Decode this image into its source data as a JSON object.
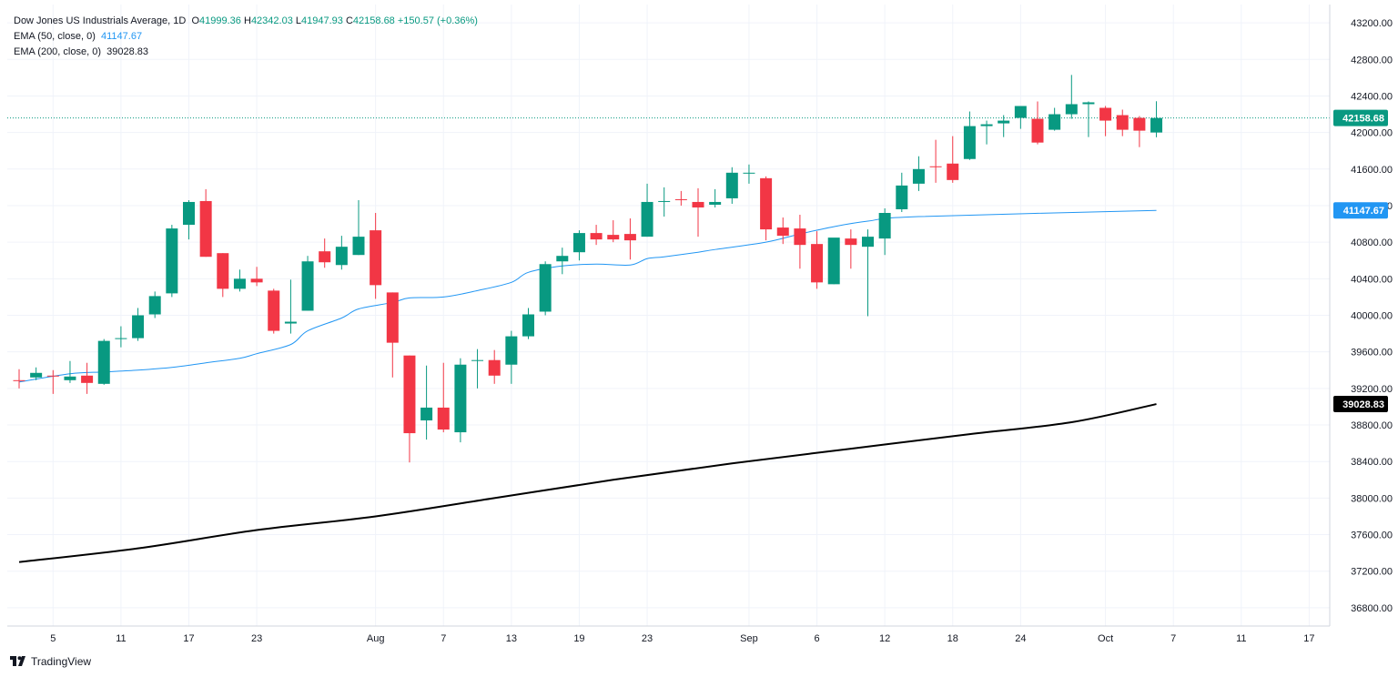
{
  "legend": {
    "symbol": "Dow Jones US Industrials Average, 1D",
    "o_label": "O",
    "o": "41999.36",
    "h_label": "H",
    "h": "42342.03",
    "l_label": "L",
    "l": "41947.93",
    "c_label": "C",
    "c": "42158.68",
    "change": "+150.57 (+0.36%)",
    "ema50_label": "EMA (50, close, 0)",
    "ema50_value": "41147.67",
    "ema200_label": "EMA (200, close, 0)",
    "ema200_value": "39028.83"
  },
  "brand": {
    "name": "TradingView"
  },
  "colors": {
    "up": "#089981",
    "down": "#f23645",
    "ema50": "#2196f3",
    "ema200": "#000000",
    "grid": "#f0f3fa",
    "axis": "#d1d4dc"
  },
  "chart_data": {
    "type": "candlestick",
    "title": "Dow Jones US Industrials Average, 1D",
    "ylim": [
      36600,
      43400
    ],
    "y_ticks": [
      "43200.00",
      "42800.00",
      "42400.00",
      "42000.00",
      "41600.00",
      "41200.00",
      "40800.00",
      "40400.00",
      "40000.00",
      "39600.00",
      "39200.00",
      "38800.00",
      "38400.00",
      "38000.00",
      "37600.00",
      "37200.00",
      "36800.00"
    ],
    "x_ticks": [
      {
        "label": "5",
        "i": 2
      },
      {
        "label": "11",
        "i": 6
      },
      {
        "label": "17",
        "i": 10
      },
      {
        "label": "23",
        "i": 14
      },
      {
        "label": "Aug",
        "i": 21
      },
      {
        "label": "7",
        "i": 25
      },
      {
        "label": "13",
        "i": 29
      },
      {
        "label": "19",
        "i": 33
      },
      {
        "label": "23",
        "i": 37
      },
      {
        "label": "Sep",
        "i": 43
      },
      {
        "label": "6",
        "i": 47
      },
      {
        "label": "12",
        "i": 51
      },
      {
        "label": "18",
        "i": 55
      },
      {
        "label": "24",
        "i": 59
      },
      {
        "label": "Oct",
        "i": 64
      },
      {
        "label": "7",
        "i": 68
      },
      {
        "label": "11",
        "i": 72
      },
      {
        "label": "17",
        "i": 76
      }
    ],
    "candles": [
      [
        39290,
        39410,
        39200,
        39285
      ],
      [
        39320,
        39430,
        39290,
        39370
      ],
      [
        39340,
        39400,
        39140,
        39330
      ],
      [
        39290,
        39500,
        39260,
        39330
      ],
      [
        39340,
        39480,
        39140,
        39260
      ],
      [
        39250,
        39740,
        39240,
        39720
      ],
      [
        39740,
        39880,
        39650,
        39750
      ],
      [
        39750,
        40080,
        39720,
        40000
      ],
      [
        40010,
        40260,
        39970,
        40210
      ],
      [
        40240,
        40990,
        40200,
        40950
      ],
      [
        40990,
        41260,
        40830,
        41240
      ],
      [
        41250,
        41380,
        40640,
        40640
      ],
      [
        40680,
        40680,
        40200,
        40290
      ],
      [
        40290,
        40500,
        40260,
        40400
      ],
      [
        40400,
        40530,
        40320,
        40360
      ],
      [
        40270,
        40290,
        39800,
        39830
      ],
      [
        39910,
        40390,
        39800,
        39930
      ],
      [
        40050,
        40650,
        40050,
        40590
      ],
      [
        40700,
        40840,
        40520,
        40580
      ],
      [
        40550,
        40870,
        40500,
        40750
      ],
      [
        40660,
        41260,
        40660,
        40860
      ],
      [
        40930,
        41120,
        40180,
        40330
      ],
      [
        40250,
        40250,
        39320,
        39700
      ],
      [
        39560,
        39560,
        38390,
        38710
      ],
      [
        38850,
        39450,
        38640,
        38990
      ],
      [
        38990,
        39480,
        38720,
        38750
      ],
      [
        38720,
        39530,
        38610,
        39460
      ],
      [
        39510,
        39630,
        39200,
        39510
      ],
      [
        39510,
        39620,
        39250,
        39340
      ],
      [
        39460,
        39830,
        39250,
        39770
      ],
      [
        39770,
        40080,
        39740,
        40010
      ],
      [
        40040,
        40590,
        40000,
        40560
      ],
      [
        40590,
        40740,
        40450,
        40650
      ],
      [
        40690,
        40930,
        40600,
        40900
      ],
      [
        40900,
        40990,
        40770,
        40830
      ],
      [
        40880,
        41040,
        40800,
        40830
      ],
      [
        40890,
        41060,
        40610,
        40820
      ],
      [
        40860,
        41440,
        40860,
        41240
      ],
      [
        41250,
        41400,
        41080,
        41250
      ],
      [
        41270,
        41360,
        41200,
        41260
      ],
      [
        41240,
        41390,
        40860,
        41180
      ],
      [
        41210,
        41380,
        41180,
        41240
      ],
      [
        41280,
        41620,
        41220,
        41560
      ],
      [
        41550,
        41650,
        41440,
        41560
      ],
      [
        41500,
        41520,
        40820,
        40940
      ],
      [
        40960,
        41070,
        40780,
        40870
      ],
      [
        40950,
        41100,
        40510,
        40770
      ],
      [
        40780,
        40920,
        40290,
        40360
      ],
      [
        40340,
        40820,
        40340,
        40850
      ],
      [
        40840,
        40940,
        40510,
        40770
      ],
      [
        40750,
        40940,
        39990,
        40860
      ],
      [
        40840,
        41170,
        40660,
        41120
      ],
      [
        41160,
        41560,
        41130,
        41420
      ],
      [
        41440,
        41740,
        41360,
        41600
      ],
      [
        41630,
        41920,
        41450,
        41620
      ],
      [
        41660,
        41960,
        41450,
        41480
      ],
      [
        41710,
        42230,
        41700,
        42070
      ],
      [
        42070,
        42130,
        41870,
        42090
      ],
      [
        42100,
        42190,
        41950,
        42130
      ],
      [
        42160,
        42290,
        42040,
        42290
      ],
      [
        42150,
        42340,
        41870,
        41890
      ],
      [
        42030,
        42270,
        42020,
        42200
      ],
      [
        42200,
        42630,
        42150,
        42310
      ],
      [
        42310,
        42340,
        41950,
        42330
      ],
      [
        42270,
        42290,
        41960,
        42130
      ],
      [
        42190,
        42250,
        41960,
        42030
      ],
      [
        42160,
        42180,
        41840,
        42020
      ],
      [
        42000,
        42342,
        41948,
        42159
      ]
    ],
    "ema50": [
      39270,
      39360,
      39380,
      39400,
      39430,
      39480,
      39530,
      39580,
      39680,
      39830,
      39970,
      40070,
      40140,
      40190,
      40200,
      40270,
      40360,
      40470,
      40540,
      40560,
      40550,
      40620,
      40640,
      40690,
      40720,
      40800,
      40890,
      40970,
      41030,
      41080,
      41147.67
    ],
    "ema50_index": [
      0,
      3,
      5,
      7,
      9,
      11,
      13,
      14,
      16,
      17,
      19,
      20,
      22,
      23,
      25,
      27,
      29,
      30,
      32,
      34,
      36,
      37,
      38,
      40,
      41,
      44,
      46,
      48,
      50,
      53,
      67
    ],
    "ema200": [
      37300,
      37450,
      37650,
      37800,
      38000,
      38200,
      38380,
      38540,
      38700,
      38830,
      39028.83
    ],
    "ema200_index": [
      0,
      7,
      14,
      21,
      28,
      35,
      42,
      49,
      56,
      62,
      67
    ],
    "last_price_tag": "42158.68",
    "ema50_tag": "41147.67",
    "ema200_tag": "39028.83"
  }
}
